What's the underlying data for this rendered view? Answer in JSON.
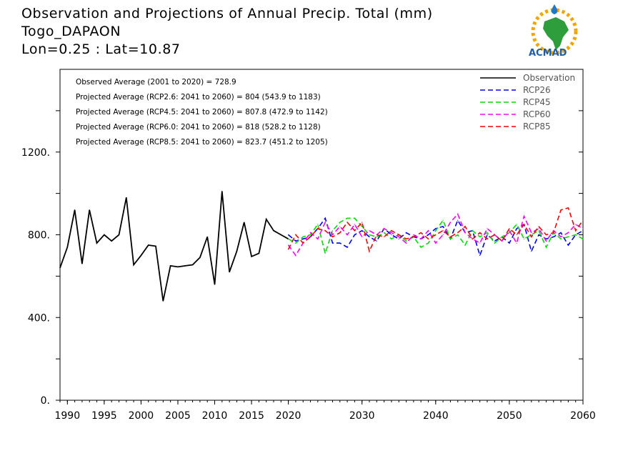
{
  "chart_data": {
    "type": "line",
    "title_lines": [
      "Observation and Projections of Annual Precip. Total (mm)",
      "Togo_DAPAON",
      "Lon=0.25 : Lat=10.87"
    ],
    "xlabel": "",
    "ylabel": "",
    "xlim": [
      1989,
      2060
    ],
    "ylim": [
      0,
      1600
    ],
    "x_ticks": [
      1990,
      1995,
      2000,
      2005,
      2010,
      2015,
      2020,
      2030,
      2040,
      2050,
      2060
    ],
    "x_tick_labels": [
      "1990",
      "1995",
      "2000",
      "2005",
      "2010",
      "2015",
      "2020",
      "2030",
      "2040",
      "2050",
      "2060"
    ],
    "y_ticks": [
      0,
      400,
      800,
      1200
    ],
    "y_tick_labels": [
      "0.",
      "400.",
      "800.",
      "1200."
    ],
    "legend_position": "top-right",
    "annotations": [
      "Observed Average (2001 to 2020) = 728.9",
      "Projected Average (RCP2.6: 2041 to 2060) = 804 (543.9 to 1183)",
      "Projected Average (RCP4.5: 2041 to 2060) = 807.8 (472.9 to 1142)",
      "Projected Average (RCP6.0: 2041 to 2060) = 818 (528.2 to 1128)",
      "Projected Average (RCP8.5: 2041 to 2060) = 823.7 (451.2 to 1205)"
    ],
    "series": [
      {
        "name": "Observation",
        "color": "#000000",
        "dashed": false,
        "x": [
          1989,
          1990,
          1991,
          1992,
          1993,
          1994,
          1995,
          1996,
          1997,
          1998,
          1999,
          2000,
          2001,
          2002,
          2003,
          2004,
          2005,
          2006,
          2007,
          2008,
          2009,
          2010,
          2011,
          2012,
          2013,
          2014,
          2015,
          2016,
          2017,
          2018,
          2019,
          2020
        ],
        "values": [
          640,
          740,
          920,
          660,
          920,
          760,
          800,
          770,
          800,
          980,
          655,
          700,
          750,
          745,
          480,
          650,
          645,
          650,
          655,
          690,
          790,
          560,
          1010,
          620,
          720,
          860,
          695,
          710,
          875,
          820,
          800,
          780
        ]
      },
      {
        "name": "RCP26",
        "color": "#0000ff",
        "dashed": true,
        "x": [
          2020,
          2021,
          2022,
          2023,
          2024,
          2025,
          2026,
          2027,
          2028,
          2029,
          2030,
          2031,
          2032,
          2033,
          2034,
          2035,
          2036,
          2037,
          2038,
          2039,
          2040,
          2041,
          2042,
          2043,
          2044,
          2045,
          2046,
          2047,
          2048,
          2049,
          2050,
          2051,
          2052,
          2053,
          2054,
          2055,
          2056,
          2057,
          2058,
          2059,
          2060
        ],
        "values": [
          800,
          770,
          780,
          790,
          830,
          880,
          760,
          760,
          740,
          800,
          820,
          790,
          770,
          830,
          800,
          780,
          810,
          790,
          780,
          800,
          830,
          840,
          780,
          870,
          810,
          820,
          700,
          800,
          770,
          790,
          760,
          830,
          850,
          720,
          800,
          780,
          790,
          810,
          750,
          800,
          820
        ]
      },
      {
        "name": "RCP45",
        "color": "#00dd00",
        "dashed": true,
        "x": [
          2020,
          2021,
          2022,
          2023,
          2024,
          2025,
          2026,
          2027,
          2028,
          2029,
          2030,
          2031,
          2032,
          2033,
          2034,
          2035,
          2036,
          2037,
          2038,
          2039,
          2040,
          2041,
          2042,
          2043,
          2044,
          2045,
          2046,
          2047,
          2048,
          2049,
          2050,
          2051,
          2052,
          2053,
          2054,
          2055,
          2056,
          2057,
          2058,
          2059,
          2060
        ],
        "values": [
          780,
          760,
          790,
          800,
          850,
          710,
          820,
          860,
          880,
          880,
          840,
          800,
          790,
          810,
          780,
          800,
          770,
          790,
          740,
          760,
          820,
          870,
          780,
          800,
          750,
          820,
          790,
          810,
          760,
          790,
          810,
          850,
          780,
          800,
          820,
          740,
          810,
          780,
          790,
          800,
          780
        ]
      },
      {
        "name": "RCP60",
        "color": "#ff00ff",
        "dashed": true,
        "x": [
          2020,
          2021,
          2022,
          2023,
          2024,
          2025,
          2026,
          2027,
          2028,
          2029,
          2030,
          2031,
          2032,
          2033,
          2034,
          2035,
          2036,
          2037,
          2038,
          2039,
          2040,
          2041,
          2042,
          2043,
          2044,
          2045,
          2046,
          2047,
          2048,
          2049,
          2050,
          2051,
          2052,
          2053,
          2054,
          2055,
          2056,
          2057,
          2058,
          2059,
          2060
        ],
        "values": [
          750,
          700,
          760,
          810,
          780,
          860,
          800,
          840,
          800,
          850,
          790,
          820,
          800,
          830,
          810,
          790,
          760,
          800,
          780,
          820,
          760,
          800,
          860,
          900,
          810,
          780,
          760,
          830,
          800,
          770,
          820,
          760,
          890,
          810,
          830,
          770,
          820,
          790,
          810,
          850,
          830
        ]
      },
      {
        "name": "RCP85",
        "color": "#ff0000",
        "dashed": true,
        "x": [
          2020,
          2021,
          2022,
          2023,
          2024,
          2025,
          2026,
          2027,
          2028,
          2029,
          2030,
          2031,
          2032,
          2033,
          2034,
          2035,
          2036,
          2037,
          2038,
          2039,
          2040,
          2041,
          2042,
          2043,
          2044,
          2045,
          2046,
          2047,
          2048,
          2049,
          2050,
          2051,
          2052,
          2053,
          2054,
          2055,
          2056,
          2057,
          2058,
          2059,
          2060
        ],
        "values": [
          730,
          800,
          760,
          790,
          830,
          820,
          790,
          810,
          860,
          820,
          860,
          720,
          800,
          790,
          820,
          800,
          780,
          790,
          810,
          780,
          800,
          820,
          790,
          810,
          840,
          780,
          810,
          780,
          800,
          770,
          830,
          800,
          850,
          790,
          840,
          800,
          810,
          920,
          930,
          820,
          870
        ]
      }
    ]
  },
  "logo": {
    "text": "ACMAD"
  }
}
